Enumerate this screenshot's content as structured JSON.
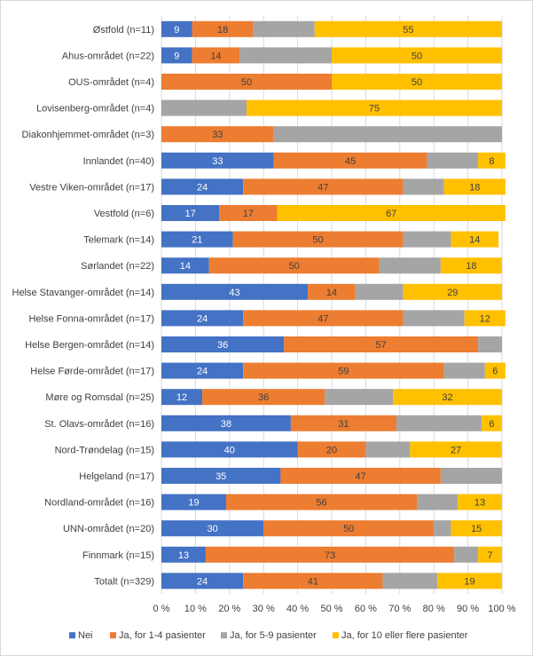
{
  "chart_data": {
    "type": "bar",
    "orientation": "horizontal",
    "stacked": true,
    "percent_stacked": true,
    "categories": [
      "Østfold (n=11)",
      "Ahus-området (n=22)",
      "OUS-området (n=4)",
      "Lovisenberg-området (n=4)",
      "Diakonhjemmet-området (n=3)",
      "Innlandet (n=40)",
      "Vestre Viken-området (n=17)",
      "Vestfold (n=6)",
      "Telemark (n=14)",
      "Sørlandet (n=22)",
      "Helse Stavanger-området (n=14)",
      "Helse Fonna-området (n=17)",
      "Helse Bergen-området (n=14)",
      "Helse Førde-området (n=17)",
      "Møre og Romsdal (n=25)",
      "St. Olavs-området (n=16)",
      "Nord-Trøndelag (n=15)",
      "Helgeland (n=17)",
      "Nordland-området (n=16)",
      "UNN-området (n=20)",
      "Finnmark (n=15)",
      "Totalt (n=329)"
    ],
    "series": [
      {
        "name": "Nei",
        "color": "#4472C4",
        "label_color": "#ffffff",
        "values": [
          9,
          9,
          0,
          0,
          0,
          33,
          24,
          17,
          21,
          14,
          43,
          24,
          36,
          24,
          12,
          38,
          40,
          35,
          19,
          30,
          13,
          24
        ],
        "labels": [
          "9",
          "9",
          "",
          "",
          "",
          "33",
          "24",
          "17",
          "21",
          "14",
          "43",
          "24",
          "36",
          "24",
          "12",
          "38",
          "40",
          "35",
          "19",
          "30",
          "13",
          "24"
        ]
      },
      {
        "name": "Ja, for 1-4 pasienter",
        "color": "#ED7D31",
        "label_color": "#404040",
        "values": [
          18,
          14,
          50,
          0,
          33,
          45,
          47,
          17,
          50,
          50,
          14,
          47,
          57,
          59,
          36,
          31,
          20,
          47,
          56,
          50,
          73,
          41
        ],
        "labels": [
          "18",
          "14",
          "50",
          "",
          "33",
          "45",
          "47",
          "17",
          "50",
          "50",
          "14",
          "47",
          "57",
          "59",
          "36",
          "31",
          "20",
          "47",
          "56",
          "50",
          "73",
          "41"
        ]
      },
      {
        "name": "Ja, for 5-9 pasienter",
        "color": "#A5A5A5",
        "label_color": "#404040",
        "values": [
          18,
          27,
          0,
          25,
          67,
          15,
          12,
          0,
          14,
          18,
          14,
          18,
          7,
          12,
          20,
          25,
          13,
          18,
          12,
          5,
          7,
          16
        ],
        "labels": [
          "",
          "",
          "",
          "",
          "",
          "",
          "",
          "",
          "",
          "",
          "",
          "",
          "",
          "",
          "",
          "",
          "",
          "",
          "",
          "",
          "",
          ""
        ]
      },
      {
        "name": "Ja, for 10 eller flere pasienter",
        "color": "#FFC000",
        "label_color": "#404040",
        "values": [
          55,
          50,
          50,
          75,
          0,
          8,
          18,
          67,
          14,
          18,
          29,
          12,
          0,
          6,
          32,
          6,
          27,
          0,
          13,
          15,
          7,
          19
        ],
        "labels": [
          "55",
          "50",
          "50",
          "75",
          "",
          "8",
          "18",
          "67",
          "14",
          "18",
          "29",
          "12",
          "",
          "6",
          "32",
          "6",
          "27",
          "",
          "13",
          "15",
          "7",
          "19"
        ]
      }
    ],
    "xlim": [
      0,
      100
    ],
    "x_ticks": [
      "0 %",
      "10 %",
      "20 %",
      "30 %",
      "40 %",
      "50 %",
      "60 %",
      "70 %",
      "80 %",
      "90 %",
      "100 %"
    ],
    "grid": true,
    "legend_position": "bottom"
  }
}
